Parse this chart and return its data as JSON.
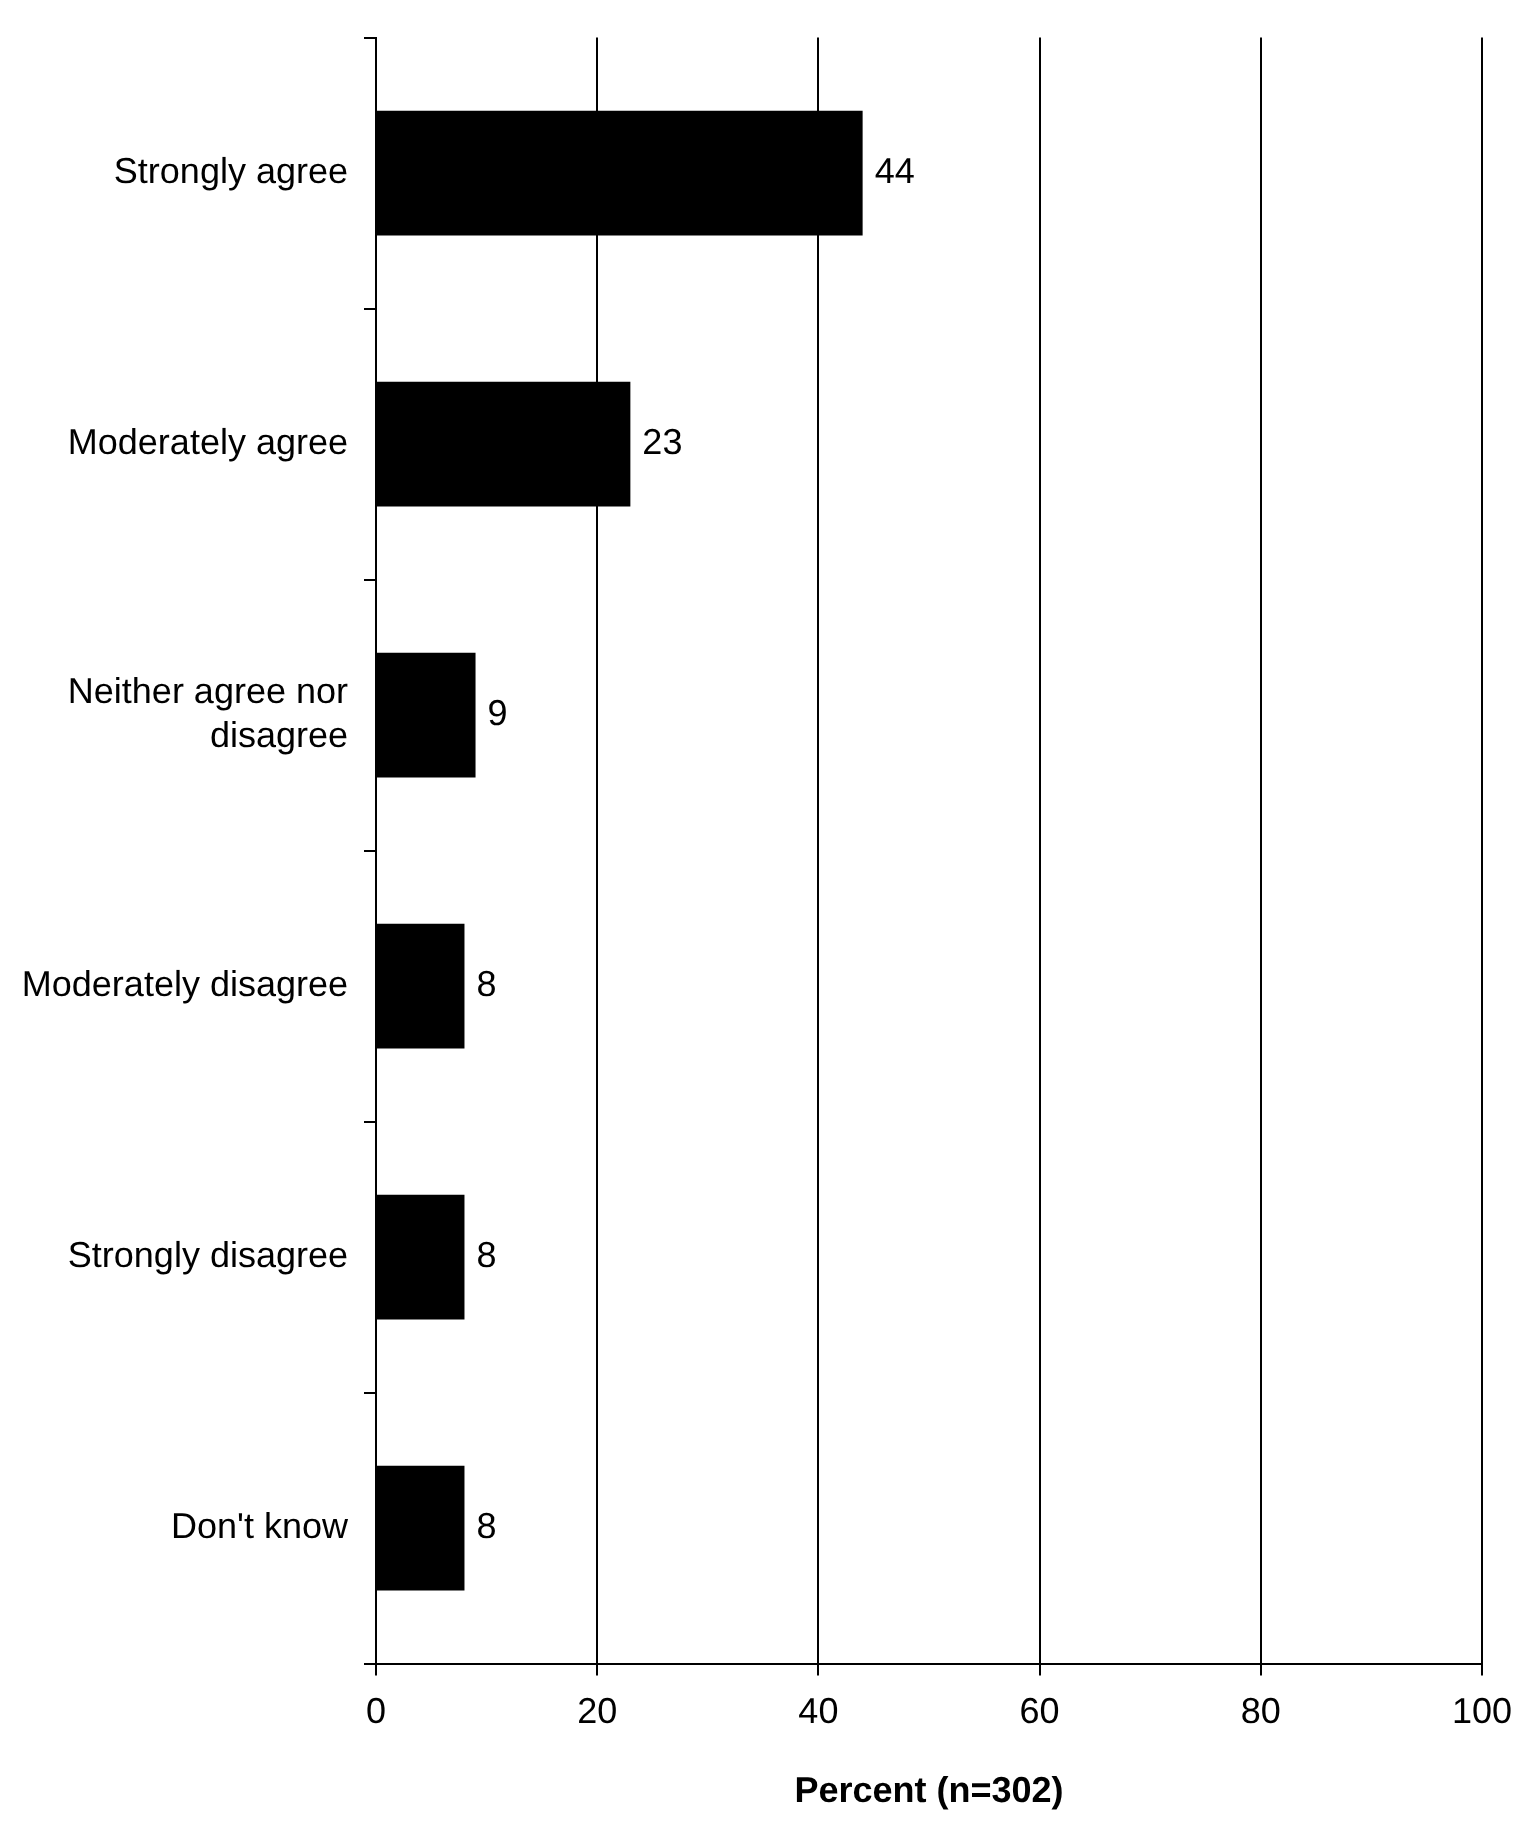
{
  "chart_data": {
    "type": "bar",
    "orientation": "horizontal",
    "xlabel": "Percent (n=302)",
    "categories": [
      "Strongly agree",
      "Moderately agree",
      "Neither agree nor disagree",
      "Moderately disagree",
      "Strongly disagree",
      "Don't know"
    ],
    "values": [
      44,
      23,
      9,
      8,
      8,
      8
    ],
    "color": "#000000",
    "data_labels": true,
    "xlim": [
      0,
      100
    ],
    "xticks": [
      0,
      20,
      40,
      60,
      80,
      100
    ],
    "grid": "x",
    "legend": false
  }
}
